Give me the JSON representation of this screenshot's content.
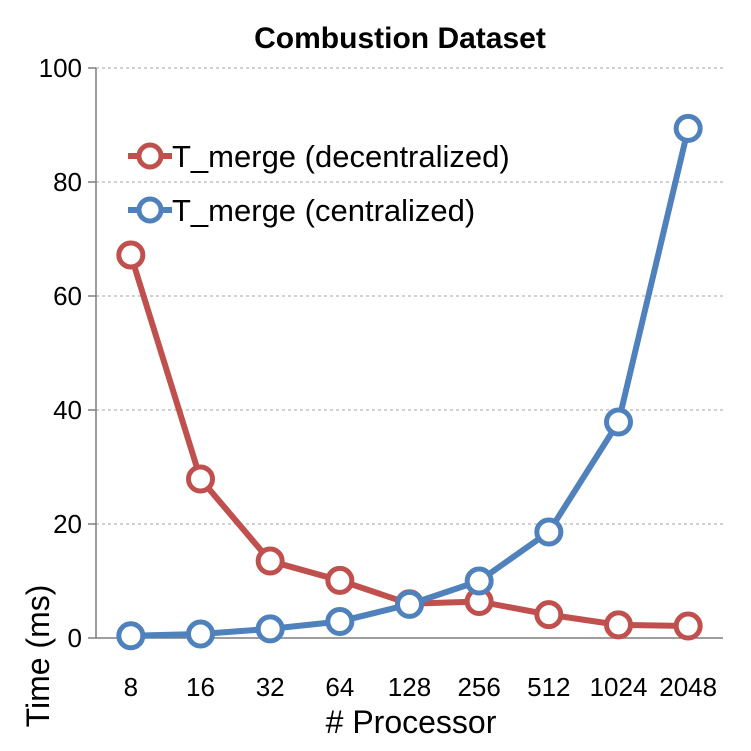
{
  "chart_data": {
    "type": "line",
    "title": "Combustion Dataset",
    "xlabel": "# Processor",
    "ylabel": "Time (ms)",
    "categories": [
      "8",
      "16",
      "32",
      "64",
      "128",
      "256",
      "512",
      "1024",
      "2048"
    ],
    "ylim": [
      0,
      100
    ],
    "yticks": [
      "0",
      "20",
      "40",
      "60",
      "80",
      "100"
    ],
    "grid": true,
    "legend_position": "top-left",
    "series": [
      {
        "name": "T_merge (decentralized)",
        "color": "#c0504d",
        "values": [
          67.2,
          27.9,
          13.5,
          10.1,
          6.0,
          6.4,
          4.1,
          2.3,
          2.1
        ]
      },
      {
        "name": "T_merge (centralized)",
        "color": "#4f81bd",
        "values": [
          0.4,
          0.7,
          1.6,
          2.9,
          5.9,
          10.0,
          18.6,
          37.9,
          89.4
        ]
      }
    ]
  }
}
